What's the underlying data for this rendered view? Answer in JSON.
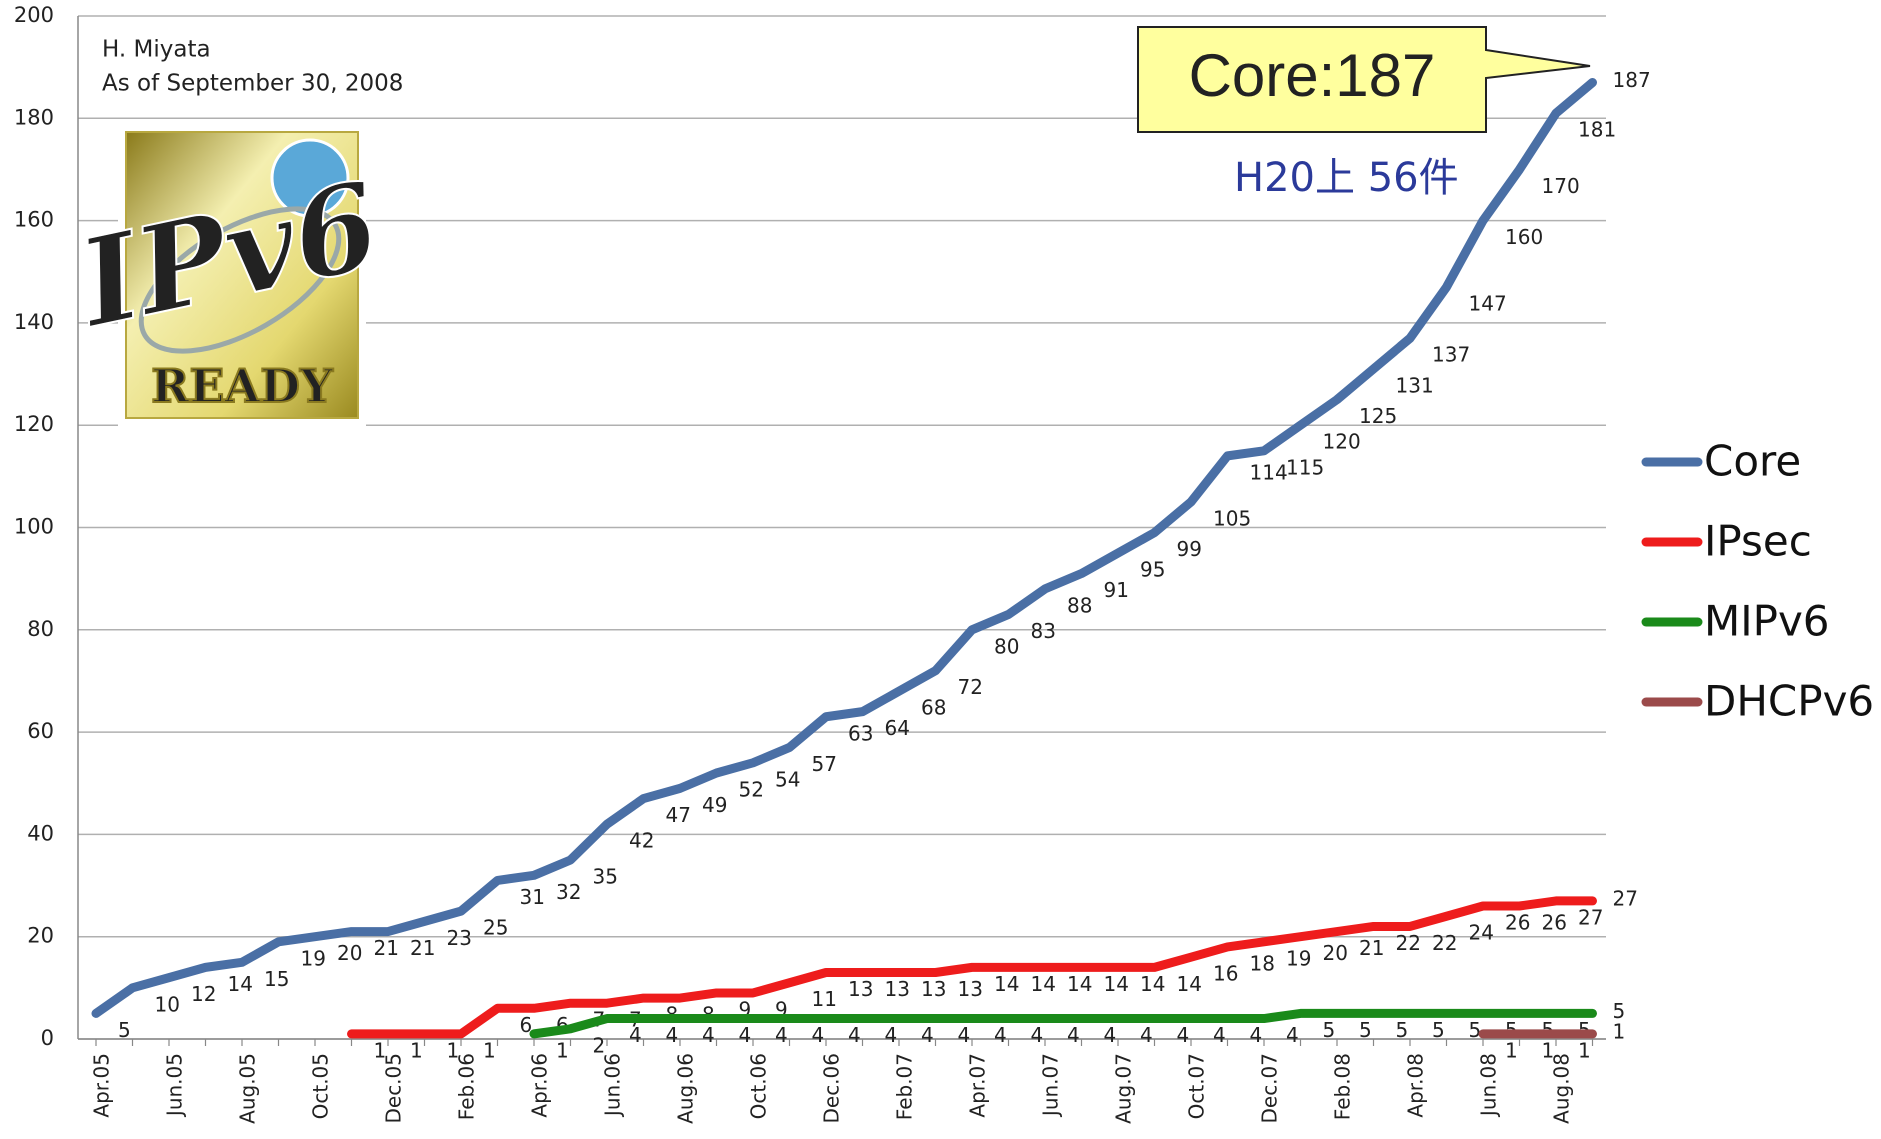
{
  "chart_data": {
    "type": "line",
    "annotations": {
      "author": "H. Miyata",
      "date": "As of September 30, 2008",
      "callout": "Core:187",
      "note": "H20上 56件"
    },
    "logo": {
      "text": "IPv6",
      "caption": "READY"
    },
    "categories": [
      "Apr.05",
      null,
      "Jun.05",
      null,
      "Aug.05",
      null,
      "Oct.05",
      null,
      "Dec.05",
      null,
      "Feb.06",
      null,
      "Apr.06",
      null,
      "Jun.06",
      null,
      "Aug.06",
      null,
      "Oct.06",
      null,
      "Dec.06",
      null,
      "Feb.07",
      null,
      "Apr.07",
      null,
      "Jun.07",
      null,
      "Aug.07",
      null,
      "Oct.07",
      null,
      "Dec.07",
      null,
      "Feb.08",
      null,
      "Apr.08",
      null,
      "Jun.08",
      null,
      "Aug.08",
      null
    ],
    "series": [
      {
        "name": "Core",
        "color": "#4a6fa5",
        "values": [
          5,
          10,
          12,
          14,
          15,
          19,
          20,
          21,
          21,
          23,
          25,
          31,
          32,
          35,
          42,
          47,
          49,
          52,
          54,
          57,
          63,
          64,
          68,
          72,
          80,
          83,
          88,
          91,
          95,
          99,
          105,
          114,
          115,
          120,
          125,
          131,
          137,
          147,
          160,
          170,
          181,
          187
        ]
      },
      {
        "name": "IPsec",
        "color": "#ee1c1c",
        "values": [
          null,
          null,
          null,
          null,
          null,
          null,
          null,
          1,
          1,
          1,
          1,
          6,
          6,
          7,
          7,
          8,
          8,
          9,
          9,
          11,
          13,
          13,
          13,
          13,
          14,
          14,
          14,
          14,
          14,
          14,
          16,
          18,
          19,
          20,
          21,
          22,
          22,
          24,
          26,
          26,
          27,
          27
        ]
      },
      {
        "name": "MIPv6",
        "color": "#1a8a1a",
        "values": [
          null,
          null,
          null,
          null,
          null,
          null,
          null,
          null,
          null,
          null,
          null,
          null,
          1,
          2,
          4,
          4,
          4,
          4,
          4,
          4,
          4,
          4,
          4,
          4,
          4,
          4,
          4,
          4,
          4,
          4,
          4,
          4,
          4,
          5,
          5,
          5,
          5,
          5,
          5,
          5,
          5,
          5
        ]
      },
      {
        "name": "DHCPv6",
        "color": "#9b4a4a",
        "values": [
          null,
          null,
          null,
          null,
          null,
          null,
          null,
          null,
          null,
          null,
          null,
          null,
          null,
          null,
          null,
          null,
          null,
          null,
          null,
          null,
          null,
          null,
          null,
          null,
          null,
          null,
          null,
          null,
          null,
          null,
          null,
          null,
          null,
          null,
          null,
          null,
          null,
          null,
          1,
          1,
          1,
          1
        ]
      }
    ],
    "ylim": [
      0,
      200
    ],
    "yticks": [
      0,
      20,
      40,
      60,
      80,
      100,
      120,
      140,
      160,
      180,
      200
    ],
    "grid": true,
    "legend": "right"
  }
}
